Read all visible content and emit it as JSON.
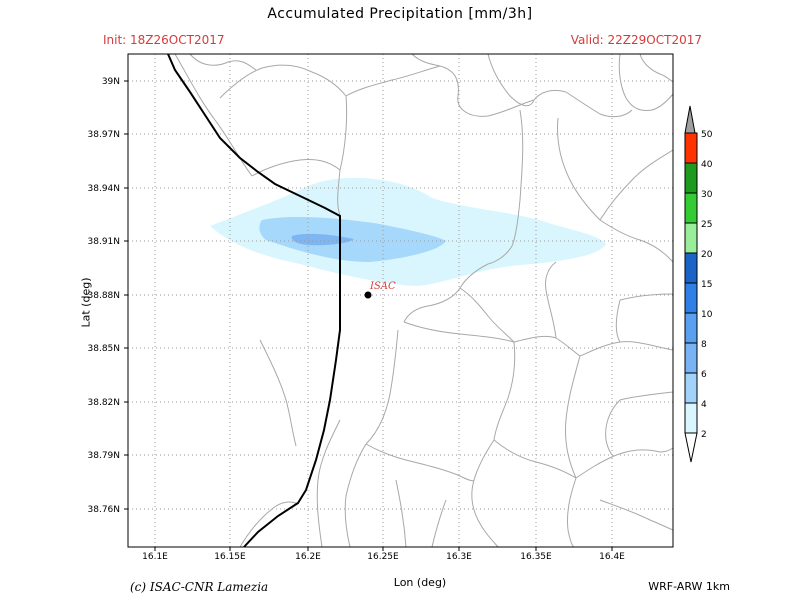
{
  "header": {
    "title": "Accumulated Precipitation [mm/3h]",
    "init": "Init: 18Z26OCT2017",
    "valid": "Valid: 22Z29OCT2017"
  },
  "axes": {
    "xlabel": "Lon (deg)",
    "ylabel": "Lat (deg)",
    "x_ticks": [
      "16.1E",
      "16.15E",
      "16.2E",
      "16.25E",
      "16.3E",
      "16.35E",
      "16.4E"
    ],
    "y_ticks": [
      "39N",
      "38.97N",
      "38.94N",
      "38.91N",
      "38.88N",
      "38.85N",
      "38.82N",
      "38.79N",
      "38.76N"
    ]
  },
  "station": {
    "label": "ISAC",
    "lon": 16.24,
    "lat": 38.88
  },
  "colorbar": {
    "labels": [
      "50",
      "40",
      "30",
      "25",
      "20",
      "15",
      "10",
      "8",
      "6",
      "4",
      "2"
    ],
    "colors": [
      "#a0a0a0",
      "#ff3300",
      "#1e9a1e",
      "#33cc33",
      "#99ee99",
      "#1a64c8",
      "#2e7fe6",
      "#5aa0f0",
      "#78b4f5",
      "#a0d2fa",
      "#d9f6fe"
    ]
  },
  "footer": {
    "credit": "(c) ISAC-CNR Lamezia",
    "model": "WRF-ARW 1km"
  }
}
